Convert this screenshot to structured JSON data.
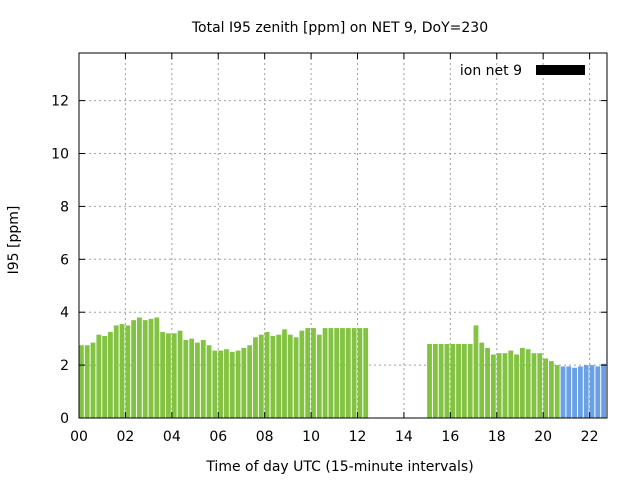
{
  "chart_data": {
    "type": "bar",
    "title": "Total I95 zenith [ppm] on NET 9, DoY=230",
    "xlabel": "Time of day UTC (15-minute intervals)",
    "ylabel": "I95 [ppm]",
    "xlim": [
      0,
      22.75
    ],
    "ylim": [
      0,
      13.8
    ],
    "grid": true,
    "legend": {
      "label": "ion net 9",
      "position": "top-right",
      "color": "#000000"
    },
    "x_ticks": [
      "00",
      "02",
      "04",
      "06",
      "08",
      "10",
      "12",
      "14",
      "16",
      "18",
      "20",
      "22"
    ],
    "y_ticks": [
      "0",
      "2",
      "4",
      "6",
      "8",
      "10",
      "12"
    ],
    "colors": {
      "green": "#82c341",
      "blue": "#6aa0e6"
    },
    "bar_interval_hours": 0.25,
    "series": [
      {
        "color": "green",
        "x": [
          0.0,
          0.25,
          0.5,
          0.75,
          1.0,
          1.25,
          1.5,
          1.75,
          2.0,
          2.25,
          2.5,
          2.75,
          3.0,
          3.25,
          3.5,
          3.75,
          4.0,
          4.25,
          4.5,
          4.75,
          5.0,
          5.25,
          5.5,
          5.75,
          6.0,
          6.25,
          6.5,
          6.75,
          7.0,
          7.25,
          7.5,
          7.75,
          8.0,
          8.25,
          8.5,
          8.75,
          9.0,
          9.25,
          9.5,
          9.75,
          10.0,
          10.25
        ],
        "values": [
          2.75,
          2.75,
          2.85,
          3.15,
          3.1,
          3.25,
          3.5,
          3.55,
          3.5,
          3.7,
          3.8,
          3.7,
          3.75,
          3.8,
          3.25,
          3.2,
          3.2,
          3.3,
          2.95,
          3.0,
          2.85,
          2.95,
          2.75,
          2.55,
          2.55,
          2.6,
          2.5,
          2.55,
          2.65,
          2.75,
          3.05,
          3.15,
          3.25,
          3.1,
          3.15,
          3.35,
          3.15,
          3.05,
          3.3,
          3.4,
          3.4,
          3.15
        ]
      },
      {
        "color": "green",
        "x": [
          10.5,
          10.75,
          11.0,
          11.25,
          11.5,
          11.75,
          12.0,
          12.25
        ],
        "values": [
          3.4,
          3.4,
          3.4,
          3.4,
          3.4,
          3.4,
          3.4,
          3.4
        ]
      },
      {
        "color": "green",
        "x": [
          15.0,
          15.25,
          15.5,
          15.75,
          16.0,
          16.25,
          16.5,
          16.75,
          17.0,
          17.25,
          17.5,
          17.75,
          18.0,
          18.25,
          18.5,
          18.75,
          19.0,
          19.25,
          19.5,
          19.75,
          20.0,
          20.25,
          20.5
        ],
        "values": [
          2.8,
          2.8,
          2.8,
          2.8,
          2.8,
          2.8,
          2.8,
          2.8,
          3.5,
          2.85,
          2.65,
          2.4,
          2.45,
          2.45,
          2.55,
          2.4,
          2.65,
          2.6,
          2.45,
          2.45,
          2.25,
          2.15,
          2.0
        ]
      },
      {
        "color": "blue",
        "x": [
          20.75,
          21.0,
          21.25,
          21.5,
          21.75,
          22.0,
          22.25,
          22.5
        ],
        "values": [
          1.95,
          1.95,
          1.9,
          1.95,
          2.0,
          2.0,
          1.95,
          2.05
        ]
      }
    ]
  }
}
